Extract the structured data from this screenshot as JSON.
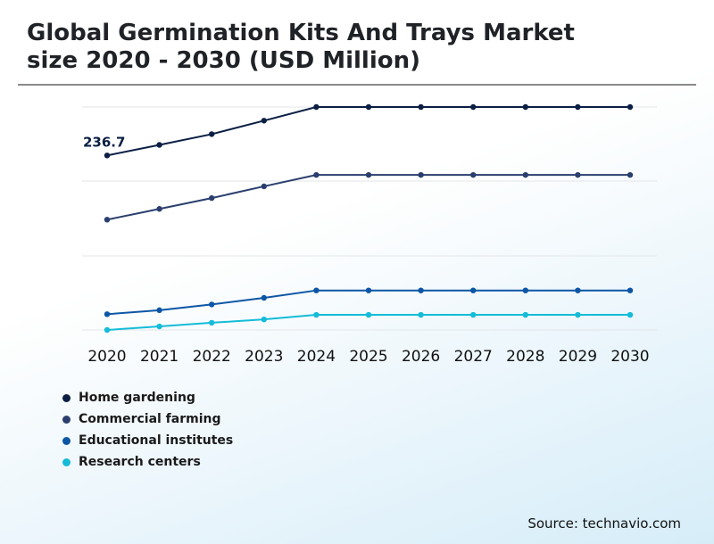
{
  "header": {
    "title_line1": "Global Germination Kits And Trays Market",
    "title_line2": "size 2020 - 2030 (USD Million)"
  },
  "source": "Source: technavio.com",
  "chart_data": {
    "type": "line",
    "title": "Global Germination Kits And Trays Market size 2020 - 2030 (USD Million)",
    "x": [
      "2020",
      "2021",
      "2022",
      "2023",
      "2024",
      "2025",
      "2026",
      "2027",
      "2028",
      "2029",
      "2030"
    ],
    "ylim": [
      0,
      300
    ],
    "grid": true,
    "legend_position": "bottom-left",
    "annotations": [
      {
        "series": "Home gardening",
        "x": "2020",
        "text": "236.7"
      }
    ],
    "series": [
      {
        "name": "Home gardening",
        "color": "#0b1f44",
        "values": [
          236.7,
          251.0,
          265.6,
          283.9,
          302.4,
          302.4,
          302.4,
          302.4,
          302.4,
          302.4,
          302.4
        ]
      },
      {
        "name": "Commercial farming",
        "color": "#2a3f6e",
        "values": [
          149.6,
          164.2,
          178.9,
          194.8,
          210.3,
          210.3,
          210.3,
          210.3,
          210.3,
          210.3,
          210.3
        ]
      },
      {
        "name": "Educational institutes",
        "color": "#0d56a6",
        "values": [
          21.4,
          26.8,
          34.6,
          43.6,
          53.6,
          53.6,
          53.6,
          53.6,
          53.6,
          53.6,
          53.6
        ]
      },
      {
        "name": "Research centers",
        "color": "#14bcd8",
        "values": [
          0.0,
          4.8,
          9.8,
          14.3,
          20.5,
          20.5,
          20.5,
          20.5,
          20.5,
          20.5,
          20.5
        ]
      }
    ]
  }
}
